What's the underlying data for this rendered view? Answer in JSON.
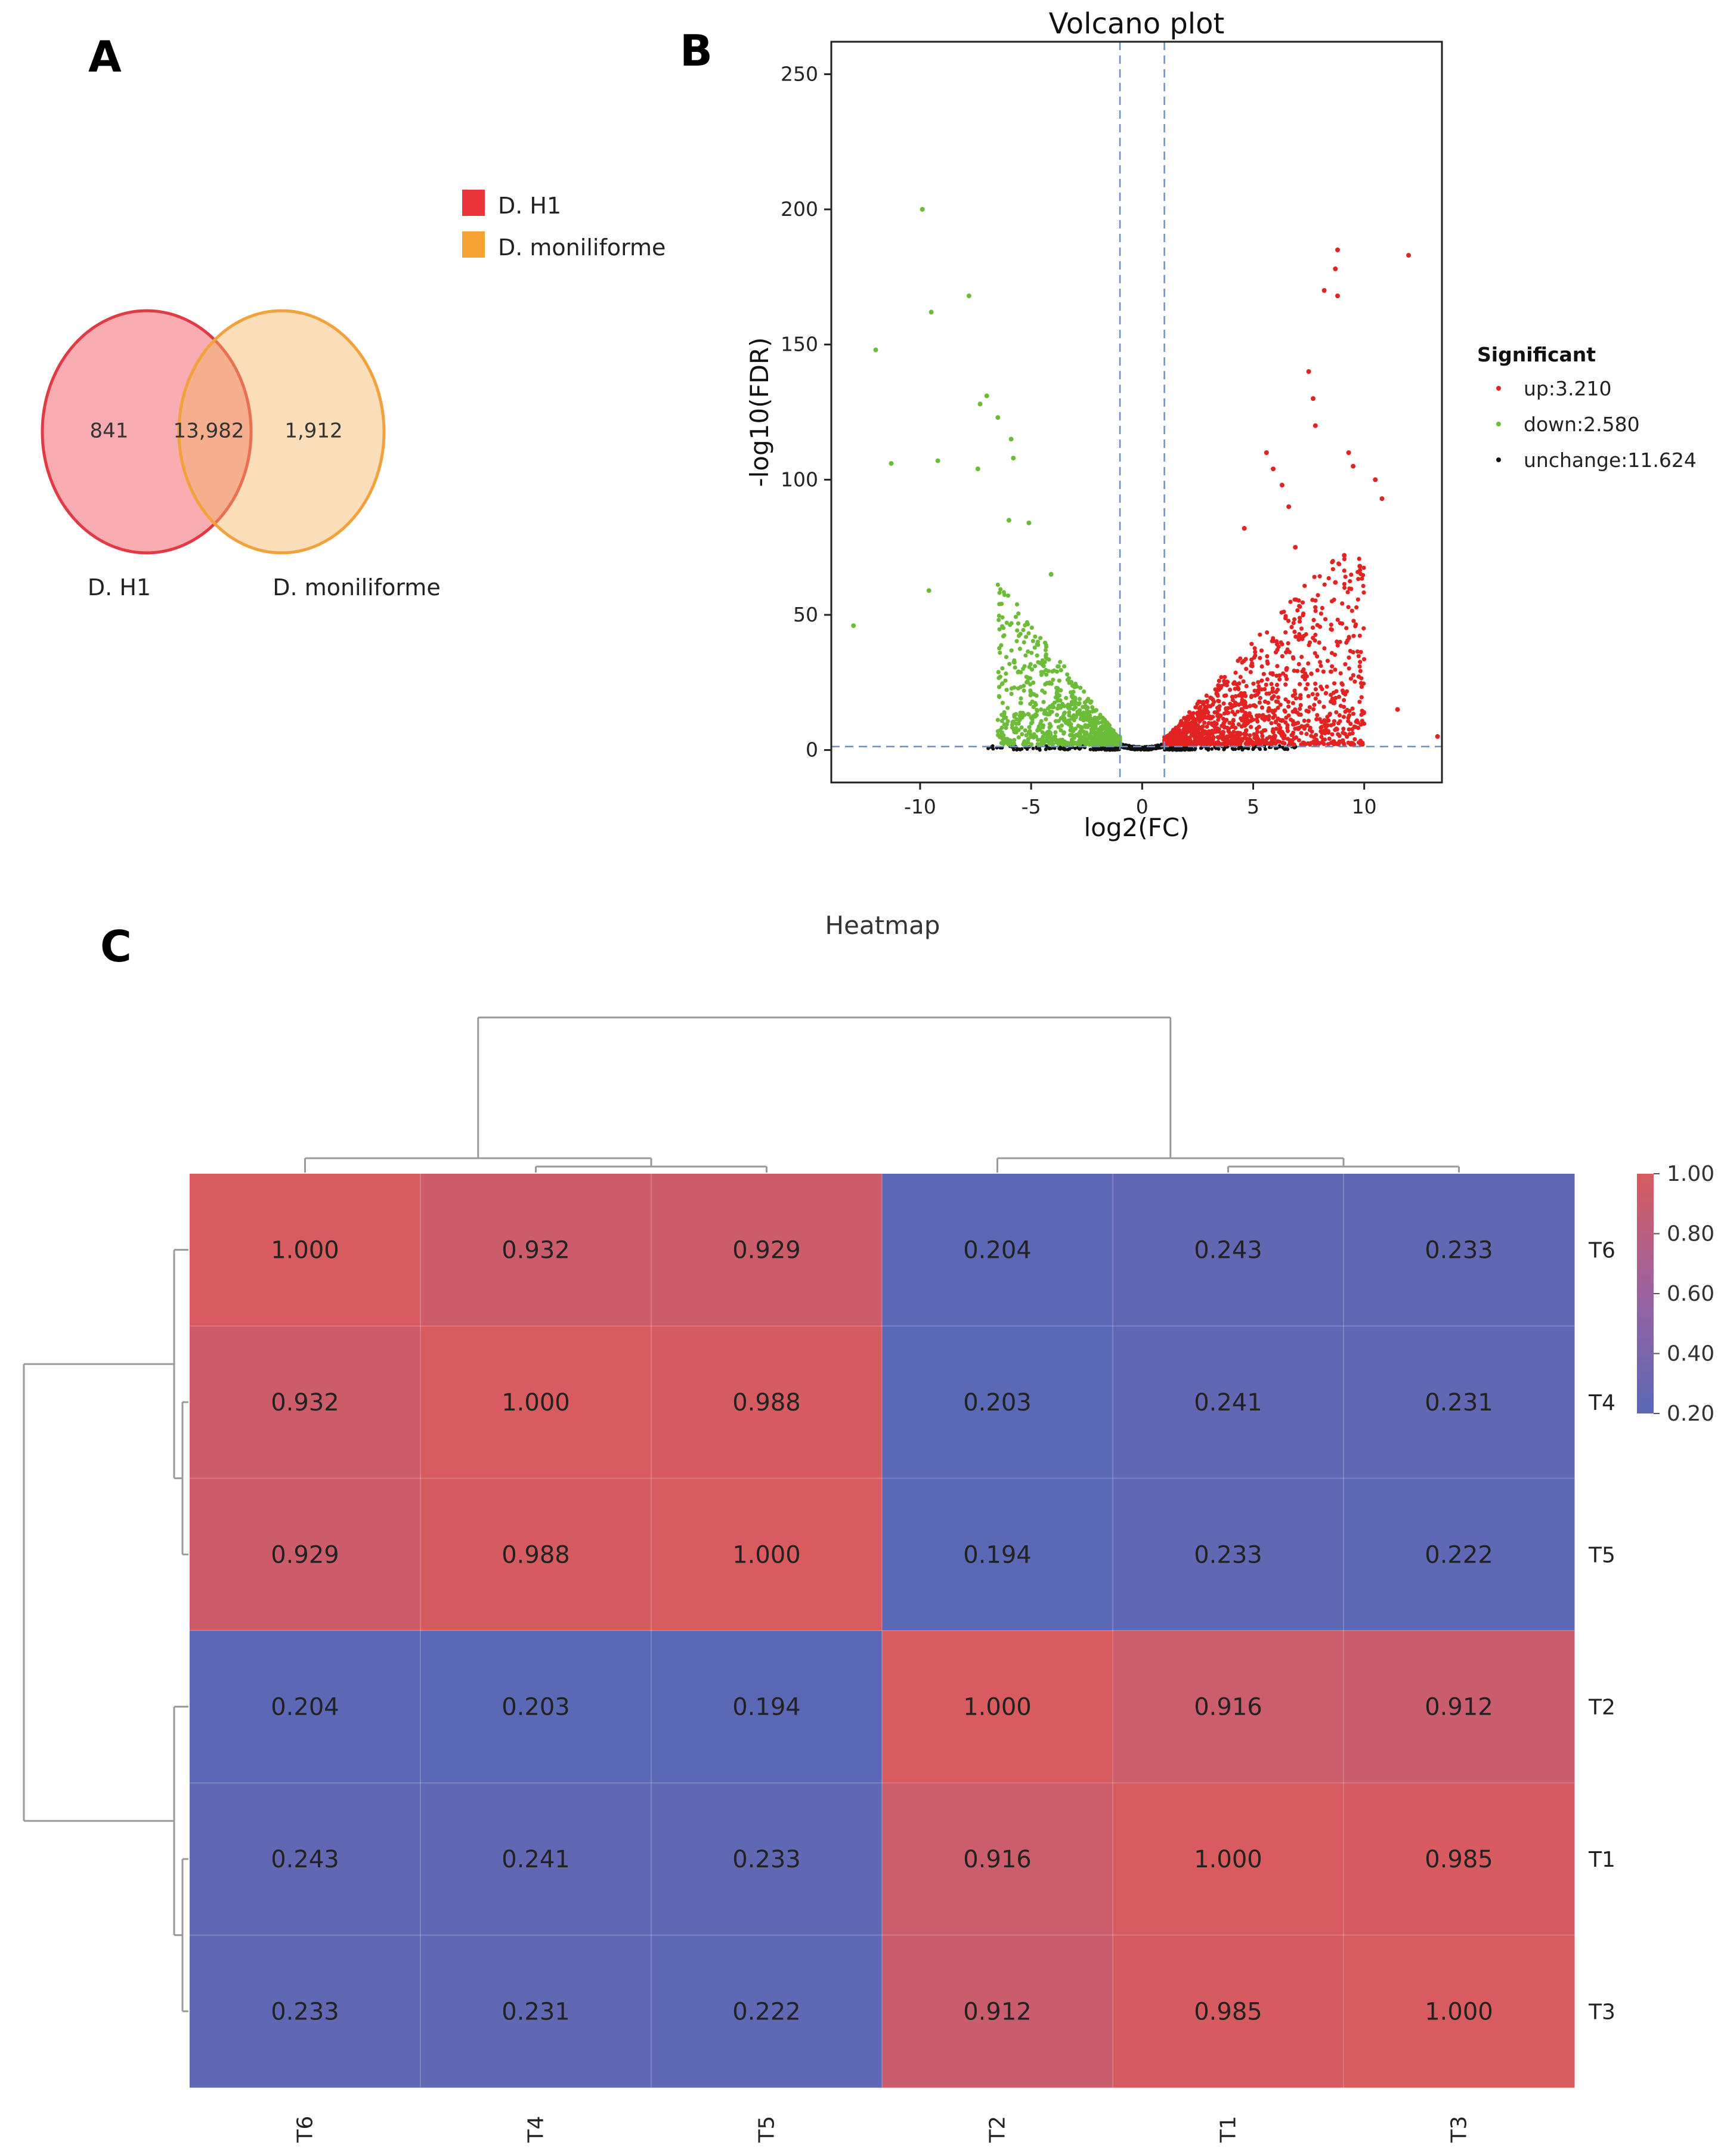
{
  "chart_data": [
    {
      "panel": "A",
      "type": "venn",
      "sets": [
        {
          "name": "D. H1",
          "only": "841",
          "color": "#e8343a"
        },
        {
          "name": "D. moniliforme",
          "only": "1,912",
          "color": "#f4a233"
        }
      ],
      "intersection": "13,982",
      "legend": [
        "D. H1",
        "D. moniliforme"
      ]
    },
    {
      "panel": "B",
      "type": "scatter",
      "title": "Volcano plot",
      "xlabel": "log2(FC)",
      "ylabel": "-log10(FDR)",
      "xlim": [
        -14,
        13.5
      ],
      "ylim": [
        -12,
        262
      ],
      "xticks": [
        -10,
        -5,
        0,
        5,
        10
      ],
      "yticks": [
        0,
        50,
        100,
        150,
        200,
        250
      ],
      "xtick_labels": [
        "-10",
        "-5",
        "0",
        "5",
        "10"
      ],
      "ytick_labels": [
        "0",
        "50",
        "100",
        "150",
        "200",
        "250"
      ],
      "thresholds": {
        "log2fc": [
          -1,
          1
        ],
        "neg_log10_fdr": 1.3
      },
      "legend_title": "Significant",
      "legend_position": "right",
      "series": [
        {
          "name": "up:3.210",
          "color": "#e32222",
          "count": 3210,
          "sample_points": [
            [
              12.0,
              183
            ],
            [
              8.8,
              185
            ],
            [
              8.7,
              178
            ],
            [
              8.8,
              168
            ],
            [
              8.2,
              170
            ],
            [
              7.5,
              140
            ],
            [
              7.7,
              130
            ],
            [
              7.8,
              120
            ],
            [
              9.3,
              110
            ],
            [
              9.5,
              105
            ],
            [
              10.5,
              100
            ],
            [
              10.8,
              93
            ],
            [
              5.6,
              110
            ],
            [
              5.9,
              104
            ],
            [
              6.3,
              98
            ],
            [
              6.6,
              90
            ],
            [
              4.6,
              82
            ],
            [
              6.9,
              75
            ],
            [
              9.1,
              72
            ],
            [
              9.8,
              68
            ],
            [
              8.7,
              62
            ],
            [
              11.5,
              15
            ],
            [
              13.3,
              5
            ]
          ]
        },
        {
          "name": "down:2.580",
          "color": "#6cbc3a",
          "count": 2580,
          "sample_points": [
            [
              -9.9,
              200
            ],
            [
              -7.8,
              168
            ],
            [
              -9.5,
              162
            ],
            [
              -12.0,
              148
            ],
            [
              -7.0,
              131
            ],
            [
              -7.3,
              128
            ],
            [
              -6.5,
              123
            ],
            [
              -5.9,
              115
            ],
            [
              -5.8,
              108
            ],
            [
              -11.3,
              106
            ],
            [
              -9.2,
              107
            ],
            [
              -7.4,
              104
            ],
            [
              -13.0,
              46
            ],
            [
              -9.6,
              59
            ],
            [
              -6.0,
              85
            ],
            [
              -5.1,
              84
            ],
            [
              -4.1,
              65
            ]
          ]
        },
        {
          "name": "unchange:11.624",
          "color": "#111111",
          "count": 11624
        }
      ]
    },
    {
      "panel": "C",
      "type": "heatmap",
      "title": "Heatmap",
      "columns": [
        "T6",
        "T4",
        "T5",
        "T2",
        "T1",
        "T3"
      ],
      "rows": [
        "T6",
        "T4",
        "T5",
        "T2",
        "T1",
        "T3"
      ],
      "values": [
        [
          1.0,
          0.932,
          0.929,
          0.204,
          0.243,
          0.233
        ],
        [
          0.932,
          1.0,
          0.988,
          0.203,
          0.241,
          0.231
        ],
        [
          0.929,
          0.988,
          1.0,
          0.194,
          0.233,
          0.222
        ],
        [
          0.204,
          0.203,
          0.194,
          1.0,
          0.916,
          0.912
        ],
        [
          0.243,
          0.241,
          0.233,
          0.916,
          1.0,
          0.985
        ],
        [
          0.233,
          0.231,
          0.222,
          0.912,
          0.985,
          1.0
        ]
      ],
      "value_labels": [
        [
          "1.000",
          "0.932",
          "0.929",
          "0.204",
          "0.243",
          "0.233"
        ],
        [
          "0.932",
          "1.000",
          "0.988",
          "0.203",
          "0.241",
          "0.231"
        ],
        [
          "0.929",
          "0.988",
          "1.000",
          "0.194",
          "0.233",
          "0.222"
        ],
        [
          "0.204",
          "0.203",
          "0.194",
          "1.000",
          "0.916",
          "0.912"
        ],
        [
          "0.243",
          "0.241",
          "0.233",
          "0.916",
          "1.000",
          "0.985"
        ],
        [
          "0.233",
          "0.231",
          "0.222",
          "0.912",
          "0.985",
          "1.000"
        ]
      ],
      "colorbar": {
        "min": 0.2,
        "max": 1.0,
        "ticks": [
          "1.00",
          "0.80",
          "0.60",
          "0.40",
          "0.20"
        ],
        "low_color": "#5b68b5",
        "high_color": "#d85b5f"
      }
    }
  ],
  "panel_labels": [
    "A",
    "B",
    "C"
  ]
}
